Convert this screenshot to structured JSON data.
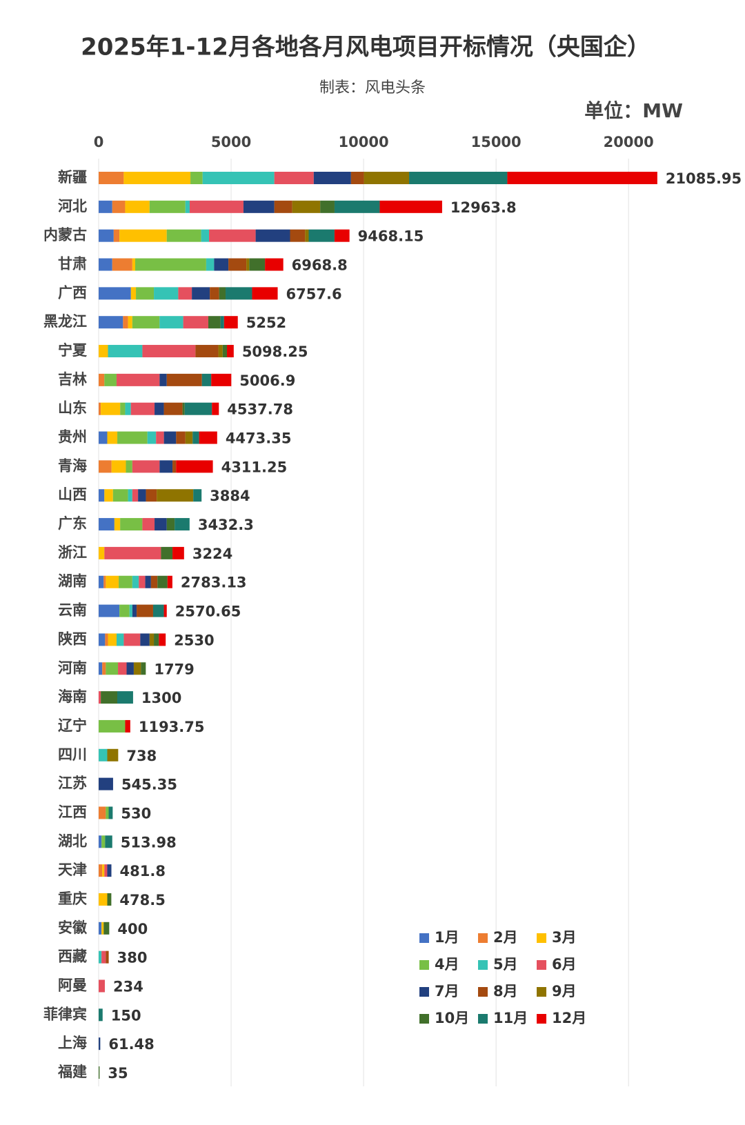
{
  "chart_data": {
    "type": "stacked_bar_horizontal",
    "title": "2025年1-12月各地各月风电项目开标情况（央国企）",
    "subtitle": "制表：风电头条",
    "unit": "单位：MW",
    "categories": [
      "新疆",
      "河北",
      "内蒙古",
      "甘肃",
      "广西",
      "黑龙江",
      "宁夏",
      "吉林",
      "山东",
      "贵州",
      "青海",
      "山西",
      "广东",
      "浙江",
      "湖南",
      "云南",
      "陕西",
      "河南",
      "海南",
      "辽宁",
      "四川",
      "江苏",
      "江西",
      "湖北",
      "天津",
      "重庆",
      "安徽",
      "西藏",
      "阿曼",
      "菲律宾",
      "上海",
      "福建"
    ],
    "series": [
      {
        "name": "1月",
        "color": "#4472c4",
        "values": [
          0,
          514,
          568,
          514,
          1218,
          920,
          0,
          0,
          0,
          325,
          0,
          216,
          595,
          0,
          189,
          785,
          244,
          135,
          0,
          0,
          0,
          0,
          0,
          108,
          0,
          0,
          108,
          0,
          0,
          0,
          0,
          0
        ]
      },
      {
        "name": "2月",
        "color": "#ed7d31",
        "values": [
          947,
          487,
          216,
          758,
          0,
          189,
          0,
          216,
          81,
          0,
          487,
          0,
          0,
          0,
          81,
          0,
          108,
          135,
          0,
          0,
          0,
          0,
          270,
          0,
          135,
          0,
          0,
          0,
          0,
          0,
          0,
          0
        ]
      },
      {
        "name": "3月",
        "color": "#ffc000",
        "values": [
          2517,
          920,
          1786,
          108,
          189,
          162,
          352,
          0,
          731,
          379,
          541,
          325,
          216,
          216,
          487,
          0,
          325,
          0,
          0,
          0,
          0,
          0,
          0,
          0,
          81,
          325,
          81,
          0,
          0,
          0,
          0,
          0
        ]
      },
      {
        "name": "4月",
        "color": "#78bf45",
        "values": [
          460,
          1353,
          1299,
          2679,
          677,
          1028,
          0,
          460,
          189,
          1137,
          244,
          568,
          839,
          0,
          514,
          379,
          0,
          460,
          0,
          1001,
          0,
          0,
          108,
          135,
          0,
          0,
          0,
          0,
          0,
          0,
          0,
          0
        ]
      },
      {
        "name": "5月",
        "color": "#35c3b5",
        "values": [
          2706,
          162,
          298,
          298,
          920,
          893,
          1299,
          0,
          216,
          325,
          0,
          162,
          0,
          0,
          244,
          108,
          271,
          0,
          0,
          0,
          325,
          0,
          0,
          0,
          0,
          0,
          0,
          108,
          0,
          0,
          0,
          0
        ]
      },
      {
        "name": "6月",
        "color": "#e5505e",
        "values": [
          1488,
          2030,
          1759,
          0,
          514,
          947,
          2002,
          1624,
          893,
          298,
          1028,
          216,
          460,
          2138,
          244,
          0,
          622,
          325,
          81,
          0,
          0,
          0,
          0,
          0,
          108,
          0,
          0,
          162,
          234,
          0,
          0,
          0
        ]
      },
      {
        "name": "7月",
        "color": "#22407f",
        "values": [
          1407,
          1164,
          1299,
          541,
          677,
          0,
          0,
          271,
          352,
          460,
          487,
          298,
          460,
          0,
          216,
          162,
          352,
          271,
          0,
          0,
          0,
          545.35,
          0,
          0,
          157.8,
          0,
          0,
          0,
          0,
          0,
          61.48,
          0
        ]
      },
      {
        "name": "8月",
        "color": "#a44a10",
        "values": [
          487,
          677,
          568,
          677,
          352,
          0,
          866,
          1326,
          704,
          352,
          135,
          406,
          0,
          0,
          244,
          622,
          0,
          0,
          0,
          0,
          0,
          0,
          0,
          0,
          0,
          0,
          0,
          110,
          0,
          0,
          0,
          0
        ]
      },
      {
        "name": "9月",
        "color": "#8f7400",
        "values": [
          1705,
          1055,
          135,
          108,
          0,
          0,
          162,
          0,
          0,
          271,
          0,
          1380,
          0,
          0,
          0,
          0,
          162,
          271,
          0,
          0,
          413,
          0,
          0,
          0,
          0,
          0,
          0,
          0,
          0,
          0,
          0,
          0
        ]
      },
      {
        "name": "10月",
        "color": "#41702b",
        "values": [
          0,
          541,
          0,
          595,
          244,
          460,
          162,
          0,
          81,
          0,
          0,
          0,
          298,
          433,
          379,
          0,
          189,
          182,
          622,
          0,
          0,
          0,
          0,
          0,
          0,
          153.5,
          211,
          0,
          0,
          0,
          0,
          35
        ]
      },
      {
        "name": "11月",
        "color": "#1b7a6e",
        "values": [
          3707,
          1705,
          974,
          0,
          1001,
          135,
          0,
          352,
          1028,
          244,
          0,
          313,
          564.3,
          0,
          0,
          406,
          0,
          0,
          597,
          0,
          0,
          0,
          152,
          270.98,
          0,
          0,
          0,
          0,
          0,
          150,
          0,
          0
        ]
      },
      {
        "name": "12月",
        "color": "#e80000",
        "values": [
          5661.95,
          2355.8,
          566.15,
          690.8,
          965.6,
          518,
          255.25,
          757.9,
          262.78,
          682.35,
          1389.25,
          0,
          0,
          437,
          185.13,
          108.65,
          257,
          0,
          0,
          192.75,
          0,
          0,
          0,
          0,
          0,
          0,
          0,
          0,
          0,
          0,
          0,
          0
        ]
      }
    ],
    "totals": [
      21085.95,
      12963.8,
      9468.15,
      6968.8,
      6757.6,
      5252,
      5098.25,
      5006.9,
      4537.78,
      4473.35,
      4311.25,
      3884,
      3432.3,
      3224,
      2783.13,
      2570.65,
      2530,
      1779,
      1300,
      1193.75,
      738,
      545.35,
      530,
      513.98,
      481.8,
      478.5,
      400,
      380,
      234,
      150,
      61.48,
      35
    ],
    "xlim": [
      0,
      22000
    ],
    "xticks": [
      0,
      5000,
      10000,
      15000,
      20000
    ],
    "grid": true,
    "legend": "lower right"
  }
}
